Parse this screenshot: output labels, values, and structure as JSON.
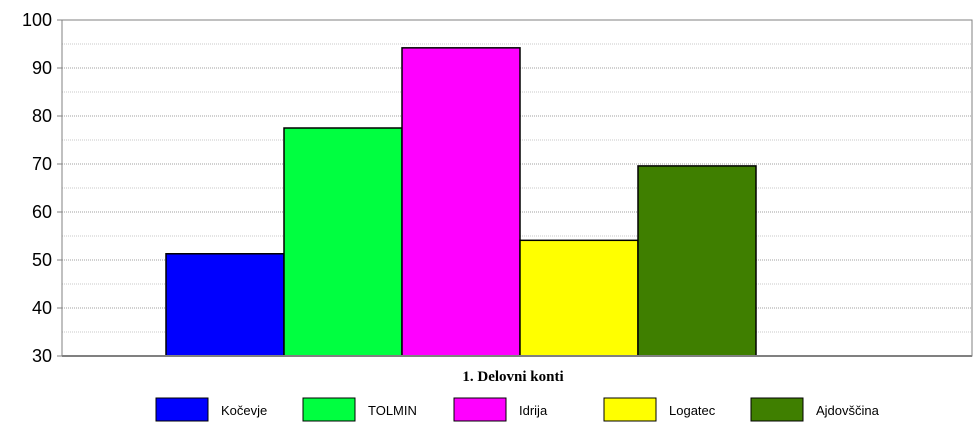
{
  "chart_data": {
    "type": "bar",
    "categories": [
      "1. Delovni konti"
    ],
    "series": [
      {
        "name": "Kočevje",
        "values": [
          51.3
        ],
        "color": "#0000ff"
      },
      {
        "name": "TOLMIN",
        "values": [
          77.5
        ],
        "color": "#00ff40"
      },
      {
        "name": "Idrija",
        "values": [
          94.2
        ],
        "color": "#ff00ff"
      },
      {
        "name": "Logatec",
        "values": [
          54.1
        ],
        "color": "#ffff00"
      },
      {
        "name": "Ajdovščina",
        "values": [
          69.6
        ],
        "color": "#3f7f00"
      }
    ],
    "ylim": [
      30,
      100
    ],
    "yticks": [
      30,
      40,
      50,
      60,
      70,
      80,
      90,
      100
    ],
    "grid": true,
    "legend_position": "bottom",
    "title": "",
    "xlabel": "",
    "ylabel": ""
  }
}
